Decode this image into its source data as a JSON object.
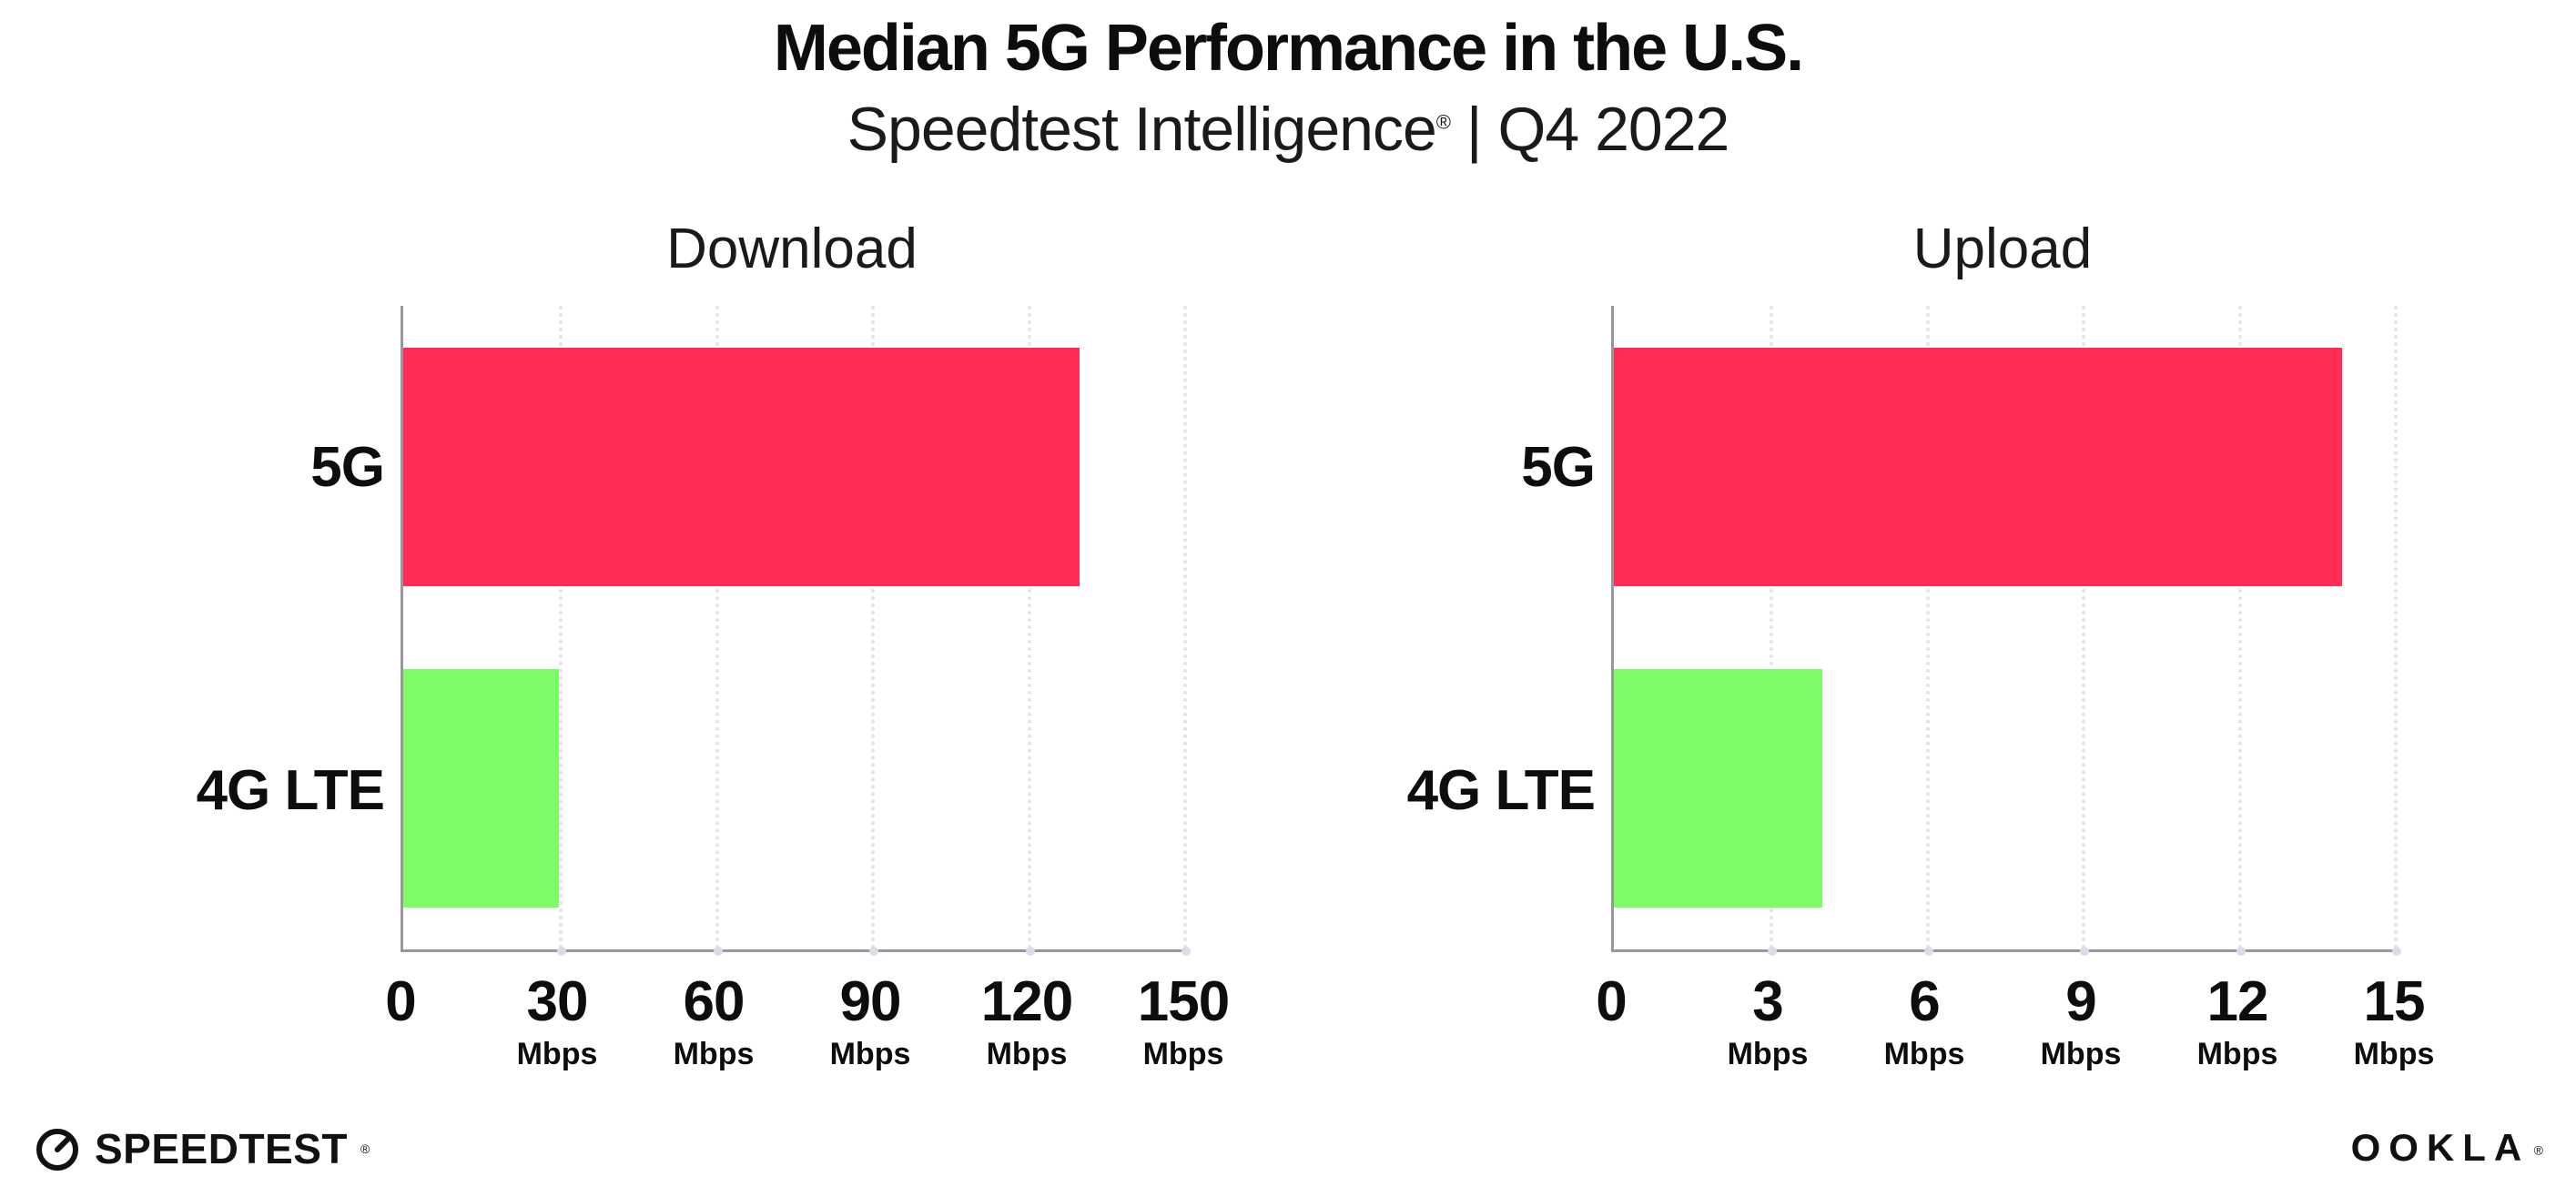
{
  "header": {
    "title": "Median 5G Performance in the U.S.",
    "subtitle_product": "Speedtest Intelligence",
    "subtitle_reg": "®",
    "subtitle_period": " | Q4 2022"
  },
  "chart_data": [
    {
      "type": "bar",
      "orientation": "horizontal",
      "title": "Download",
      "categories": [
        "5G",
        "4G LTE"
      ],
      "values": [
        130,
        30
      ],
      "value_unit": "Mbps",
      "xlim": [
        0,
        150
      ],
      "xticks": [
        0,
        30,
        60,
        90,
        120,
        150
      ],
      "tick_unit": "Mbps",
      "bar_colors": [
        "#ff2d56",
        "#7dfc66"
      ],
      "grid": "vertical-dotted",
      "legend": "none"
    },
    {
      "type": "bar",
      "orientation": "horizontal",
      "title": "Upload",
      "categories": [
        "5G",
        "4G LTE"
      ],
      "values": [
        14,
        4
      ],
      "value_unit": "Mbps",
      "xlim": [
        0,
        15
      ],
      "xticks": [
        0,
        3,
        6,
        9,
        12,
        15
      ],
      "tick_unit": "Mbps",
      "bar_colors": [
        "#ff2d56",
        "#7dfc66"
      ],
      "grid": "vertical-dotted",
      "legend": "none"
    }
  ],
  "footer": {
    "speedtest_label": "SPEEDTEST",
    "speedtest_mark": "®",
    "ookla_label": "OOKLA",
    "ookla_mark": "®"
  },
  "colors": {
    "bar_5g": "#ff2d56",
    "bar_4g_lte": "#7dfc66",
    "axis": "#97979c",
    "gridline": "#e3e3ee",
    "text": "#0d0d0d"
  }
}
